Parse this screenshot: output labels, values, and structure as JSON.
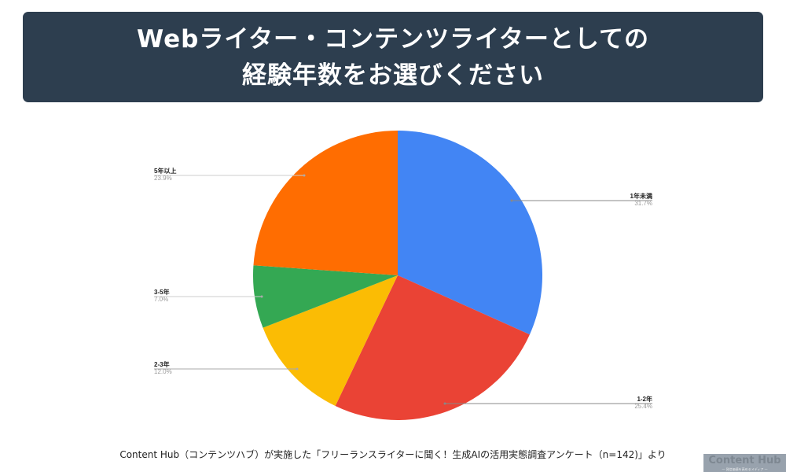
{
  "header": {
    "line1": "Webライター・コンテンツライターとしての",
    "line2": "経験年数をお選びください"
  },
  "chart_data": {
    "type": "pie",
    "title": "Webライター・コンテンツライターとしての経験年数をお選びください",
    "categories": [
      "1年未満",
      "1-2年",
      "2-3年",
      "3-5年",
      "5年以上"
    ],
    "values": [
      31.7,
      25.4,
      12.0,
      7.0,
      23.9
    ],
    "value_labels": [
      "31.7%",
      "25.4%",
      "12.0%",
      "7.0%",
      "23.9%"
    ],
    "colors": [
      "#4285f4",
      "#ea4335",
      "#fbbc04",
      "#34a853",
      "#ff6d01"
    ],
    "start_angle": "12 o'clock, clockwise",
    "legend_position": "callout labels"
  },
  "labels": {
    "lt1": {
      "name": "1年未満",
      "pct": "31.7%"
    },
    "y1_2": {
      "name": "1-2年",
      "pct": "25.4%"
    },
    "y2_3": {
      "name": "2-3年",
      "pct": "12.0%"
    },
    "y3_5": {
      "name": "3-5年",
      "pct": "7.0%"
    },
    "y5plus": {
      "name": "5年以上",
      "pct": "23.9%"
    }
  },
  "footer": {
    "source": "Content Hub（コンテンツハブ）が実施した「フリーランスライターに聞く！生成AIの活用実態調査アンケート（n=142)」より"
  },
  "logo": {
    "title": "Content Hub",
    "subtitle": "— 発信価値を高めるメディア —"
  }
}
